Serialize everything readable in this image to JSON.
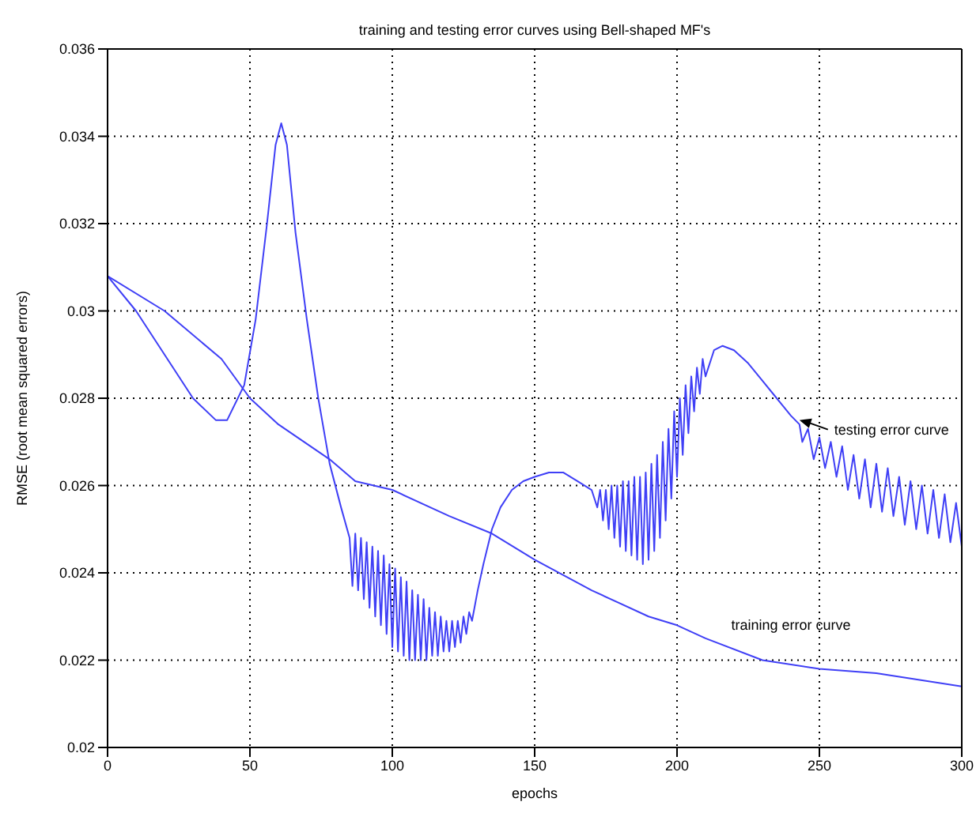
{
  "chart_data": {
    "type": "line",
    "title": "training and testing error curves using Bell-shaped MF's",
    "xlabel": "epochs",
    "ylabel": "RMSE (root mean squared errors)",
    "xlim": [
      0,
      300
    ],
    "xticks": [
      0,
      50,
      100,
      150,
      200,
      250,
      300
    ],
    "ylim": [
      0.02,
      0.036
    ],
    "yticks": [
      0.02,
      0.022,
      0.024,
      0.026,
      0.028,
      0.03,
      0.032,
      0.034,
      0.036
    ],
    "grid": true,
    "legend": false,
    "line_style": "solid",
    "marker": "none",
    "annotations": [
      {
        "text": "testing error curve",
        "x": 243,
        "y": 0.0275
      },
      {
        "text": "training error curve",
        "x": 240,
        "y": 0.0219
      }
    ],
    "series": [
      {
        "color": "#3f3ff6",
        "x": [
          0,
          10,
          20,
          30,
          38,
          42,
          48,
          52,
          56,
          59,
          61,
          63,
          66,
          70,
          74,
          78,
          82,
          85,
          86,
          87,
          88,
          89,
          90,
          91,
          92,
          93,
          94,
          95,
          96,
          97,
          98,
          99,
          100,
          101,
          102,
          103,
          104,
          105,
          106,
          107,
          108,
          109,
          110,
          111,
          112,
          113,
          114,
          115,
          116,
          117,
          118,
          119,
          120,
          121,
          122,
          123,
          124,
          125,
          126,
          127,
          128,
          130,
          132,
          135,
          138,
          142,
          146,
          150,
          155,
          160,
          165,
          170,
          172,
          173,
          174,
          175,
          176,
          177,
          178,
          179,
          180,
          181,
          182,
          183,
          184,
          185,
          186,
          187,
          188,
          189,
          190,
          191,
          192,
          193,
          194,
          195,
          196,
          197,
          198,
          199,
          200,
          201,
          202,
          203,
          204,
          205,
          206,
          207,
          208,
          209,
          210,
          213,
          216,
          220,
          225,
          230,
          235,
          240,
          243,
          244,
          246,
          248,
          250,
          252,
          254,
          256,
          258,
          260,
          262,
          264,
          266,
          268,
          270,
          272,
          274,
          276,
          278,
          280,
          282,
          284,
          286,
          288,
          290,
          292,
          294,
          296,
          298,
          300
        ],
        "values": [
          0.0308,
          0.03,
          0.029,
          0.028,
          0.0275,
          0.0275,
          0.0283,
          0.0298,
          0.032,
          0.0338,
          0.0343,
          0.0338,
          0.0318,
          0.0298,
          0.028,
          0.0265,
          0.0255,
          0.0248,
          0.0237,
          0.0249,
          0.0236,
          0.0248,
          0.0234,
          0.0247,
          0.0232,
          0.0246,
          0.023,
          0.0245,
          0.0228,
          0.0244,
          0.0226,
          0.0242,
          0.0223,
          0.0241,
          0.0222,
          0.0239,
          0.0221,
          0.0238,
          0.022,
          0.0236,
          0.022,
          0.0235,
          0.022,
          0.0234,
          0.022,
          0.0232,
          0.0221,
          0.0231,
          0.0221,
          0.023,
          0.0222,
          0.0229,
          0.0222,
          0.0229,
          0.0223,
          0.0229,
          0.0224,
          0.023,
          0.0226,
          0.0231,
          0.0229,
          0.0236,
          0.0242,
          0.025,
          0.0255,
          0.0259,
          0.0261,
          0.0262,
          0.0263,
          0.0263,
          0.0261,
          0.0259,
          0.0255,
          0.0259,
          0.0252,
          0.0259,
          0.025,
          0.026,
          0.0248,
          0.026,
          0.0246,
          0.0261,
          0.0245,
          0.0261,
          0.0244,
          0.0262,
          0.0243,
          0.0262,
          0.0242,
          0.0263,
          0.0243,
          0.0265,
          0.0245,
          0.0267,
          0.0248,
          0.027,
          0.0252,
          0.0273,
          0.0257,
          0.0277,
          0.0262,
          0.028,
          0.0267,
          0.0283,
          0.0272,
          0.0285,
          0.0277,
          0.0287,
          0.0281,
          0.0289,
          0.0285,
          0.0291,
          0.0292,
          0.0291,
          0.0288,
          0.0284,
          0.028,
          0.0276,
          0.0274,
          0.027,
          0.0273,
          0.0266,
          0.0271,
          0.0264,
          0.027,
          0.0262,
          0.0269,
          0.0259,
          0.0267,
          0.0257,
          0.0266,
          0.0255,
          0.0265,
          0.0254,
          0.0264,
          0.0253,
          0.0262,
          0.0251,
          0.0261,
          0.025,
          0.026,
          0.0249,
          0.0259,
          0.0248,
          0.0258,
          0.0247,
          0.0256,
          0.0246
        ]
      },
      {
        "color": "#3f3ff6",
        "x": [
          0,
          20,
          40,
          50,
          60,
          78,
          87,
          100,
          120,
          135,
          150,
          170,
          190,
          200,
          210,
          230,
          250,
          270,
          300
        ],
        "values": [
          0.0308,
          0.03,
          0.0289,
          0.028,
          0.0274,
          0.0266,
          0.0261,
          0.0259,
          0.0253,
          0.0249,
          0.0243,
          0.0236,
          0.023,
          0.0228,
          0.0225,
          0.022,
          0.0218,
          0.0217,
          0.0214
        ]
      }
    ]
  }
}
